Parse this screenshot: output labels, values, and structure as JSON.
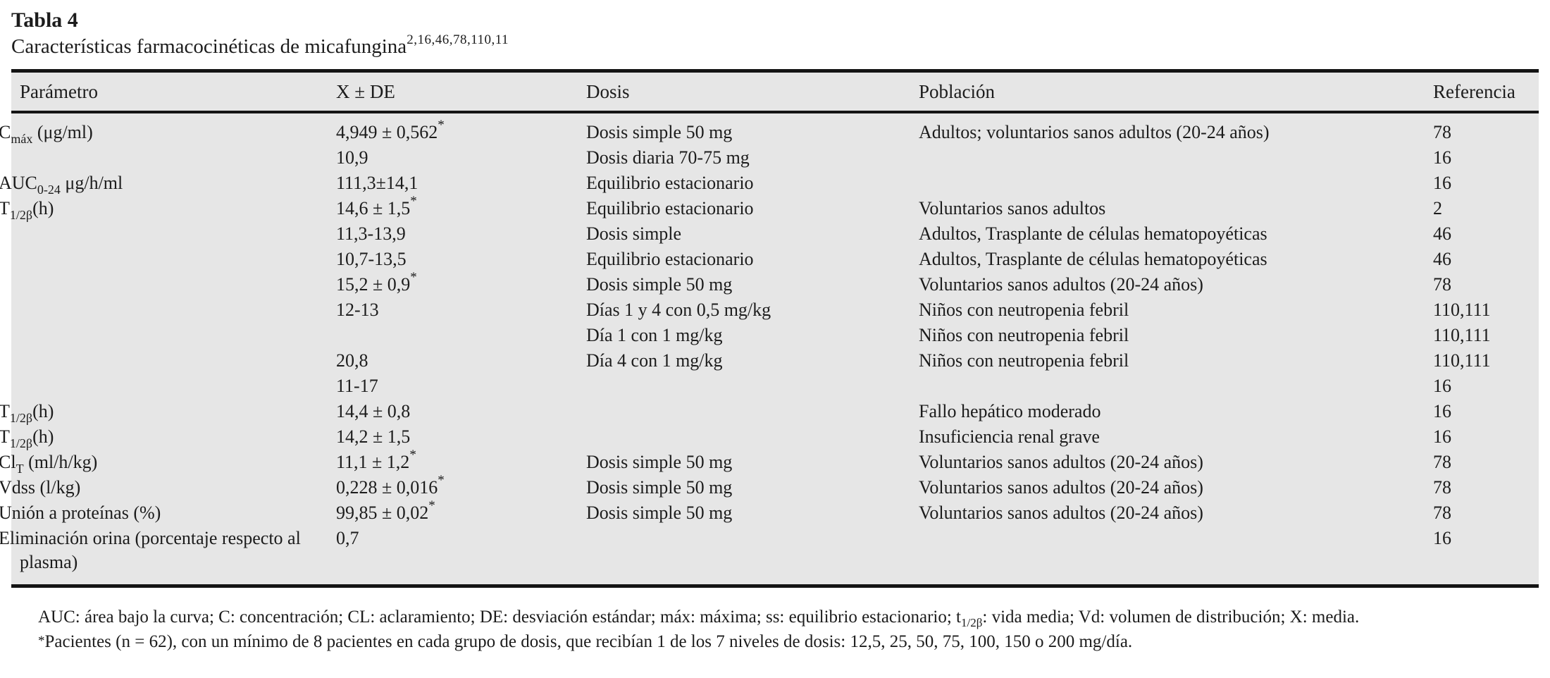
{
  "caption": {
    "label": "Tabla 4",
    "subtitle": "Características farmacocinéticas de micafungina",
    "references_sup": "2,16,46,78,110,11"
  },
  "table": {
    "columns": [
      "Parámetro",
      "X ± DE",
      "Dosis",
      "Población",
      "Referencia"
    ],
    "rows": [
      {
        "param": "C",
        "param_sub": "máx",
        "param_rest": " (μg/ml)",
        "value": "4,949 ± 0,562",
        "value_sup": "*",
        "dose": "Dosis simple 50 mg",
        "population": "Adultos; voluntarios sanos adultos (20-24 años)",
        "reference": "78"
      },
      {
        "param": "",
        "param_sub": "",
        "param_rest": "",
        "value": "10,9",
        "value_sup": "",
        "dose": "Dosis diaria 70-75 mg",
        "population": "",
        "reference": "16"
      },
      {
        "param": "AUC",
        "param_sub": "0-24",
        "param_rest": " μg/h/ml",
        "value": "111,3±14,1",
        "value_sup": "",
        "dose": "Equilibrio estacionario",
        "population": "",
        "reference": "16"
      },
      {
        "param": "T",
        "param_sub": "1/2β",
        "param_rest": "(h)",
        "value": "14,6 ± 1,5",
        "value_sup": "*",
        "dose": "Equilibrio estacionario",
        "population": "Voluntarios sanos adultos",
        "reference": "2"
      },
      {
        "param": "",
        "param_sub": "",
        "param_rest": "",
        "value": "11,3-13,9",
        "value_sup": "",
        "dose": "Dosis simple",
        "population": "Adultos, Trasplante de células hematopoyéticas",
        "reference": "46"
      },
      {
        "param": "",
        "param_sub": "",
        "param_rest": "",
        "value": "10,7-13,5",
        "value_sup": "",
        "dose": "Equilibrio estacionario",
        "population": "Adultos, Trasplante de células hematopoyéticas",
        "reference": "46"
      },
      {
        "param": "",
        "param_sub": "",
        "param_rest": "",
        "value": "15,2 ± 0,9",
        "value_sup": "*",
        "dose": "Dosis simple 50 mg",
        "population": "Voluntarios sanos adultos (20-24 años)",
        "reference": "78"
      },
      {
        "param": "",
        "param_sub": "",
        "param_rest": "",
        "value": "12-13",
        "value_sup": "",
        "dose": "Días 1 y 4 con 0,5 mg/kg",
        "population": "Niños con neutropenia febril",
        "reference": "110,111"
      },
      {
        "param": "",
        "param_sub": "",
        "param_rest": "",
        "value": "",
        "value_sup": "",
        "dose": "Día 1 con 1 mg/kg",
        "population": "Niños con neutropenia febril",
        "reference": "110,111"
      },
      {
        "param": "",
        "param_sub": "",
        "param_rest": "",
        "value": "20,8",
        "value_sup": "",
        "dose": "Día 4 con 1 mg/kg",
        "population": "Niños con neutropenia febril",
        "reference": "110,111"
      },
      {
        "param": "",
        "param_sub": "",
        "param_rest": "",
        "value": "11-17",
        "value_sup": "",
        "dose": "",
        "population": "",
        "reference": "16"
      },
      {
        "param": "T",
        "param_sub": "1/2β",
        "param_rest": "(h)",
        "value": "14,4 ± 0,8",
        "value_sup": "",
        "dose": "",
        "population": "Fallo hepático moderado",
        "reference": "16"
      },
      {
        "param": "T",
        "param_sub": "1/2β",
        "param_rest": "(h)",
        "value": "14,2 ± 1,5",
        "value_sup": "",
        "dose": "",
        "population": "Insuficiencia renal grave",
        "reference": "16"
      },
      {
        "param": "Cl",
        "param_sub": "T",
        "param_rest": " (ml/h/kg)",
        "value": "11,1 ± 1,2",
        "value_sup": "*",
        "dose": "Dosis simple 50 mg",
        "population": "Voluntarios sanos adultos (20-24 años)",
        "reference": "78"
      },
      {
        "param": "Vdss (l/kg)",
        "param_sub": "",
        "param_rest": "",
        "value": "0,228 ± 0,016",
        "value_sup": "*",
        "dose": "Dosis simple 50 mg",
        "population": "Voluntarios sanos adultos (20-24 años)",
        "reference": "78"
      },
      {
        "param": "Unión a proteínas (%)",
        "param_sub": "",
        "param_rest": "",
        "value": "99,85 ± 0,02",
        "value_sup": "*",
        "dose": "Dosis simple 50 mg",
        "population": "Voluntarios sanos adultos (20-24 años)",
        "reference": "78"
      },
      {
        "param": "Eliminación orina (porcentaje respecto al plasma)",
        "param_sub": "",
        "param_rest": "",
        "value": "0,7",
        "value_sup": "",
        "dose": "",
        "population": "",
        "reference": "16"
      }
    ]
  },
  "footnotes": {
    "abbrev_pre": "AUC: área bajo la curva; C: concentración; CL: aclaramiento; DE: desviación estándar; máx: máxima; ss: equilibrio estacionario; t",
    "abbrev_sub": "1/2β",
    "abbrev_post": ": vida media; Vd: volumen de distribución; X: media.",
    "asterisk_mark": "*",
    "asterisk_text": "Pacientes (n = 62), con un mínimo de 8 pacientes en cada grupo de dosis, que recibían 1 de los 7 niveles de dosis: 12,5, 25, 50, 75, 100, 150 o 200 mg/día."
  },
  "colors": {
    "table_background": "#e6e6e6",
    "rule": "#141414",
    "text": "#1c1c1c",
    "page_background": "#ffffff"
  }
}
